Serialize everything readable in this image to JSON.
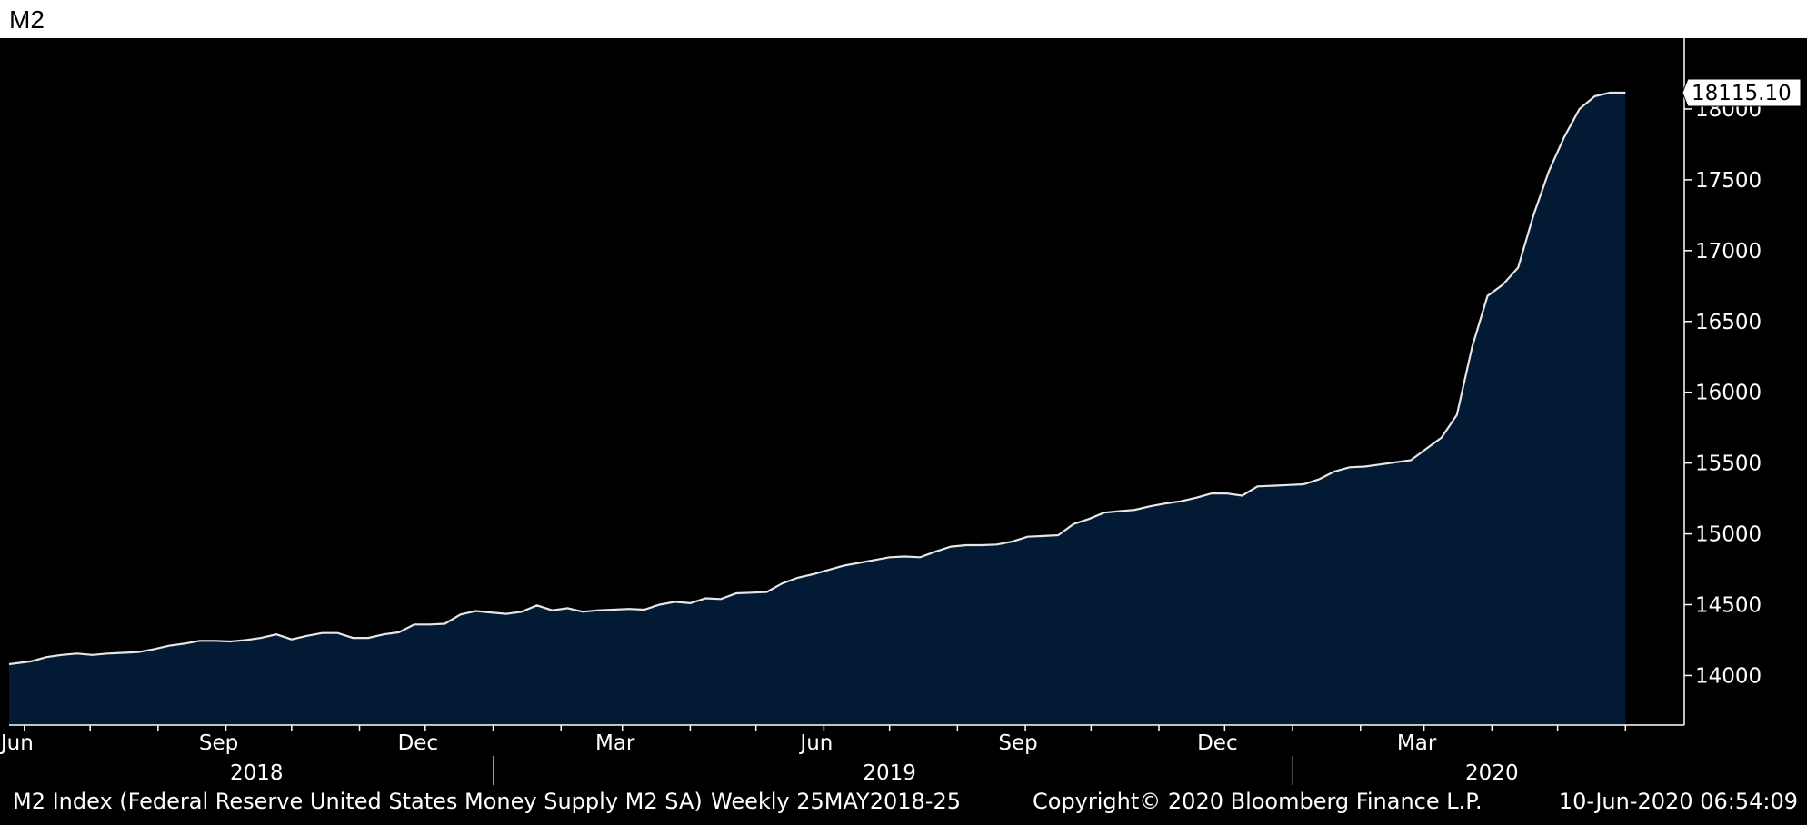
{
  "chart_data": {
    "type": "area",
    "title": "M2",
    "last_value_label": "18115.10",
    "colors": {
      "background": "#000000",
      "fill": "#031a35",
      "line": "#e6e6e6",
      "text": "#ffffff"
    },
    "grid": false,
    "ylim": [
      13650,
      18500
    ],
    "yticks": [
      14000,
      14500,
      15000,
      15500,
      16000,
      16500,
      17000,
      17500,
      18000
    ],
    "x_start": "2018-05-25",
    "x_end": "2020-06-10",
    "month_ticks": [
      {
        "date": "2018-06-01",
        "label": "Jun"
      },
      {
        "date": "2018-07-01",
        "label": ""
      },
      {
        "date": "2018-08-01",
        "label": ""
      },
      {
        "date": "2018-09-01",
        "label": "Sep"
      },
      {
        "date": "2018-10-01",
        "label": ""
      },
      {
        "date": "2018-11-01",
        "label": ""
      },
      {
        "date": "2018-12-01",
        "label": "Dec"
      },
      {
        "date": "2019-01-01",
        "label": ""
      },
      {
        "date": "2019-02-01",
        "label": ""
      },
      {
        "date": "2019-03-01",
        "label": "Mar"
      },
      {
        "date": "2019-04-01",
        "label": ""
      },
      {
        "date": "2019-05-01",
        "label": ""
      },
      {
        "date": "2019-06-01",
        "label": "Jun"
      },
      {
        "date": "2019-07-01",
        "label": ""
      },
      {
        "date": "2019-08-01",
        "label": ""
      },
      {
        "date": "2019-09-01",
        "label": "Sep"
      },
      {
        "date": "2019-10-01",
        "label": ""
      },
      {
        "date": "2019-11-01",
        "label": ""
      },
      {
        "date": "2019-12-01",
        "label": "Dec"
      },
      {
        "date": "2020-01-01",
        "label": ""
      },
      {
        "date": "2020-02-01",
        "label": ""
      },
      {
        "date": "2020-03-01",
        "label": "Mar"
      },
      {
        "date": "2020-04-01",
        "label": ""
      },
      {
        "date": "2020-05-01",
        "label": ""
      },
      {
        "date": "2020-06-01",
        "label": ""
      }
    ],
    "years": [
      {
        "label": "2018",
        "date": "2018-09-15"
      },
      {
        "label": "2019",
        "date": "2019-07-01"
      },
      {
        "label": "2020",
        "date": "2020-04-01"
      }
    ],
    "year_separators": [
      "2019-01-01",
      "2020-01-01"
    ],
    "series": [
      {
        "dates": [
          "2018-05-25",
          "2018-06-04",
          "2018-06-11",
          "2018-06-18",
          "2018-06-25",
          "2018-07-02",
          "2018-07-09",
          "2018-07-16",
          "2018-07-23",
          "2018-07-30",
          "2018-08-06",
          "2018-08-13",
          "2018-08-20",
          "2018-08-27",
          "2018-09-03",
          "2018-09-10",
          "2018-09-17",
          "2018-09-24",
          "2018-10-01",
          "2018-10-08",
          "2018-10-15",
          "2018-10-22",
          "2018-10-29",
          "2018-11-05",
          "2018-11-12",
          "2018-11-19",
          "2018-11-26",
          "2018-12-03",
          "2018-12-10",
          "2018-12-17",
          "2018-12-24",
          "2018-12-31",
          "2019-01-07",
          "2019-01-14",
          "2019-01-21",
          "2019-01-28",
          "2019-02-04",
          "2019-02-11",
          "2019-02-18",
          "2019-02-25",
          "2019-03-04",
          "2019-03-11",
          "2019-03-18",
          "2019-03-25",
          "2019-04-01",
          "2019-04-08",
          "2019-04-15",
          "2019-04-22",
          "2019-04-29",
          "2019-05-06",
          "2019-05-13",
          "2019-05-20",
          "2019-05-27",
          "2019-06-03",
          "2019-06-10",
          "2019-06-17",
          "2019-06-24",
          "2019-07-01",
          "2019-07-08",
          "2019-07-15",
          "2019-07-22",
          "2019-07-29",
          "2019-08-05",
          "2019-08-12",
          "2019-08-19",
          "2019-08-26",
          "2019-09-02",
          "2019-09-09",
          "2019-09-16",
          "2019-09-23",
          "2019-09-30",
          "2019-10-07",
          "2019-10-14",
          "2019-10-21",
          "2019-10-28",
          "2019-11-04",
          "2019-11-11",
          "2019-11-18",
          "2019-11-25",
          "2019-12-02",
          "2019-12-09",
          "2019-12-16",
          "2019-12-23",
          "2019-12-30",
          "2020-01-06",
          "2020-01-13",
          "2020-01-20",
          "2020-01-27",
          "2020-02-03",
          "2020-02-10",
          "2020-02-17",
          "2020-02-24",
          "2020-03-02",
          "2020-03-09",
          "2020-03-16",
          "2020-03-23",
          "2020-03-30",
          "2020-04-06",
          "2020-04-13",
          "2020-04-20",
          "2020-04-27",
          "2020-05-04",
          "2020-05-11",
          "2020-05-18",
          "2020-05-25",
          "2020-06-01"
        ],
        "values": [
          14080,
          14100,
          14130,
          14145,
          14155,
          14145,
          14155,
          14160,
          14165,
          14185,
          14210,
          14225,
          14245,
          14245,
          14240,
          14250,
          14265,
          14290,
          14255,
          14280,
          14300,
          14300,
          14265,
          14265,
          14290,
          14305,
          14360,
          14360,
          14365,
          14430,
          14455,
          14445,
          14435,
          14450,
          14495,
          14460,
          14475,
          14450,
          14460,
          14465,
          14470,
          14465,
          14500,
          14520,
          14510,
          14545,
          14540,
          14580,
          14585,
          14590,
          14650,
          14690,
          14715,
          14745,
          14775,
          14795,
          14815,
          14835,
          14840,
          14835,
          14875,
          14910,
          14920,
          14920,
          14925,
          14945,
          14980,
          14985,
          14990,
          15070,
          15105,
          15150,
          15160,
          15170,
          15195,
          15215,
          15230,
          15255,
          15285,
          15285,
          15270,
          15335,
          15340,
          15345,
          15350,
          15385,
          15440,
          15470,
          15475,
          15490,
          15505,
          15520,
          15600,
          15680,
          15840,
          16320,
          16680,
          16760,
          16880,
          17250,
          17560,
          17800,
          18000,
          18090,
          18115.1,
          18115.1
        ]
      }
    ]
  },
  "footer": {
    "description": "M2 Index (Federal Reserve United States Money Supply M2 SA)",
    "frequency": "Weekly 25MAY2018-25",
    "copyright": "Copyright© 2020 Bloomberg Finance L.P.",
    "timestamp": "10-Jun-2020 06:54:09"
  }
}
